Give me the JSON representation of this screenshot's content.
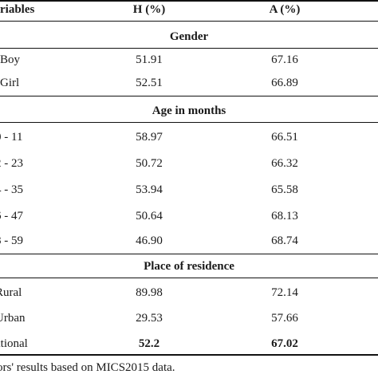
{
  "columns": [
    "riables",
    "H (%)",
    "A (%)"
  ],
  "sections": {
    "gender": "Gender",
    "age": "Age in months",
    "residence": "Place of residence"
  },
  "rows": {
    "boy": [
      "Boy",
      "51.91",
      "67.16"
    ],
    "girl": [
      "Girl",
      "52.51",
      "66.89"
    ],
    "a0": [
      "0 - 11",
      "58.97",
      "66.51"
    ],
    "a12": [
      "2 - 23",
      "50.72",
      "66.32"
    ],
    "a24": [
      "4 - 35",
      "53.94",
      "65.58"
    ],
    "a36": [
      "6 - 47",
      "50.64",
      "68.13"
    ],
    "a48": [
      "8 - 59",
      "46.90",
      "68.74"
    ],
    "rural": [
      "Rural",
      "89.98",
      "72.14"
    ],
    "urban": [
      "Urban",
      "29.53",
      "57.66"
    ],
    "national": [
      "ational",
      "52.2",
      "67.02"
    ]
  },
  "footnote": "ors' results based on MICS2015 data."
}
